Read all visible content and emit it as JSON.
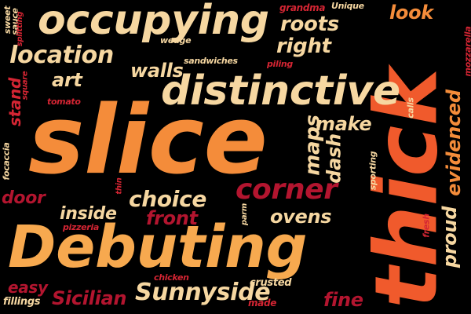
{
  "palette": {
    "background": "#000000",
    "cream": "#F6D7A1",
    "light_orange": "#F7A94F",
    "orange": "#F48C3A",
    "red_orange": "#F05A2C",
    "crimson": "#B3152F",
    "red": "#D42533"
  },
  "words": {
    "slice": "slice",
    "thick": "thick",
    "debuting": "Debuting",
    "occupying": "occupying",
    "distinctive": "distinctive",
    "location": "location",
    "corner": "corner",
    "roots": "roots",
    "right": "right",
    "look": "look",
    "walls": "walls",
    "art": "art",
    "make": "make",
    "maps": "maps",
    "dash": "dash",
    "evidenced": "evidenced",
    "proud": "proud",
    "choice": "choice",
    "front": "front",
    "ovens": "ovens",
    "inside": "inside",
    "door": "door",
    "stand": "stand",
    "sunnyside": "Sunnyside",
    "sicilian": "Sicilian",
    "fine": "fine",
    "easy": "easy",
    "crusted": "crusted",
    "chicken": "chicken",
    "fillings": "fillings",
    "made": "made",
    "grandma": "grandma",
    "unique": "Unique",
    "wedge": "wedge",
    "sandwiches": "sandwiches",
    "piling": "piling",
    "tomato": "tomato",
    "sweet": "sweet",
    "sauce": "sauce",
    "splitting": "splitting",
    "square": "square",
    "focaccia": "focaccia",
    "thin": "thin",
    "parm": "parm",
    "pizzeria": "pizzeria",
    "sporting": "sporting",
    "calls": "calls",
    "mozzarella": "mozzarella",
    "fresh": "fresh"
  }
}
